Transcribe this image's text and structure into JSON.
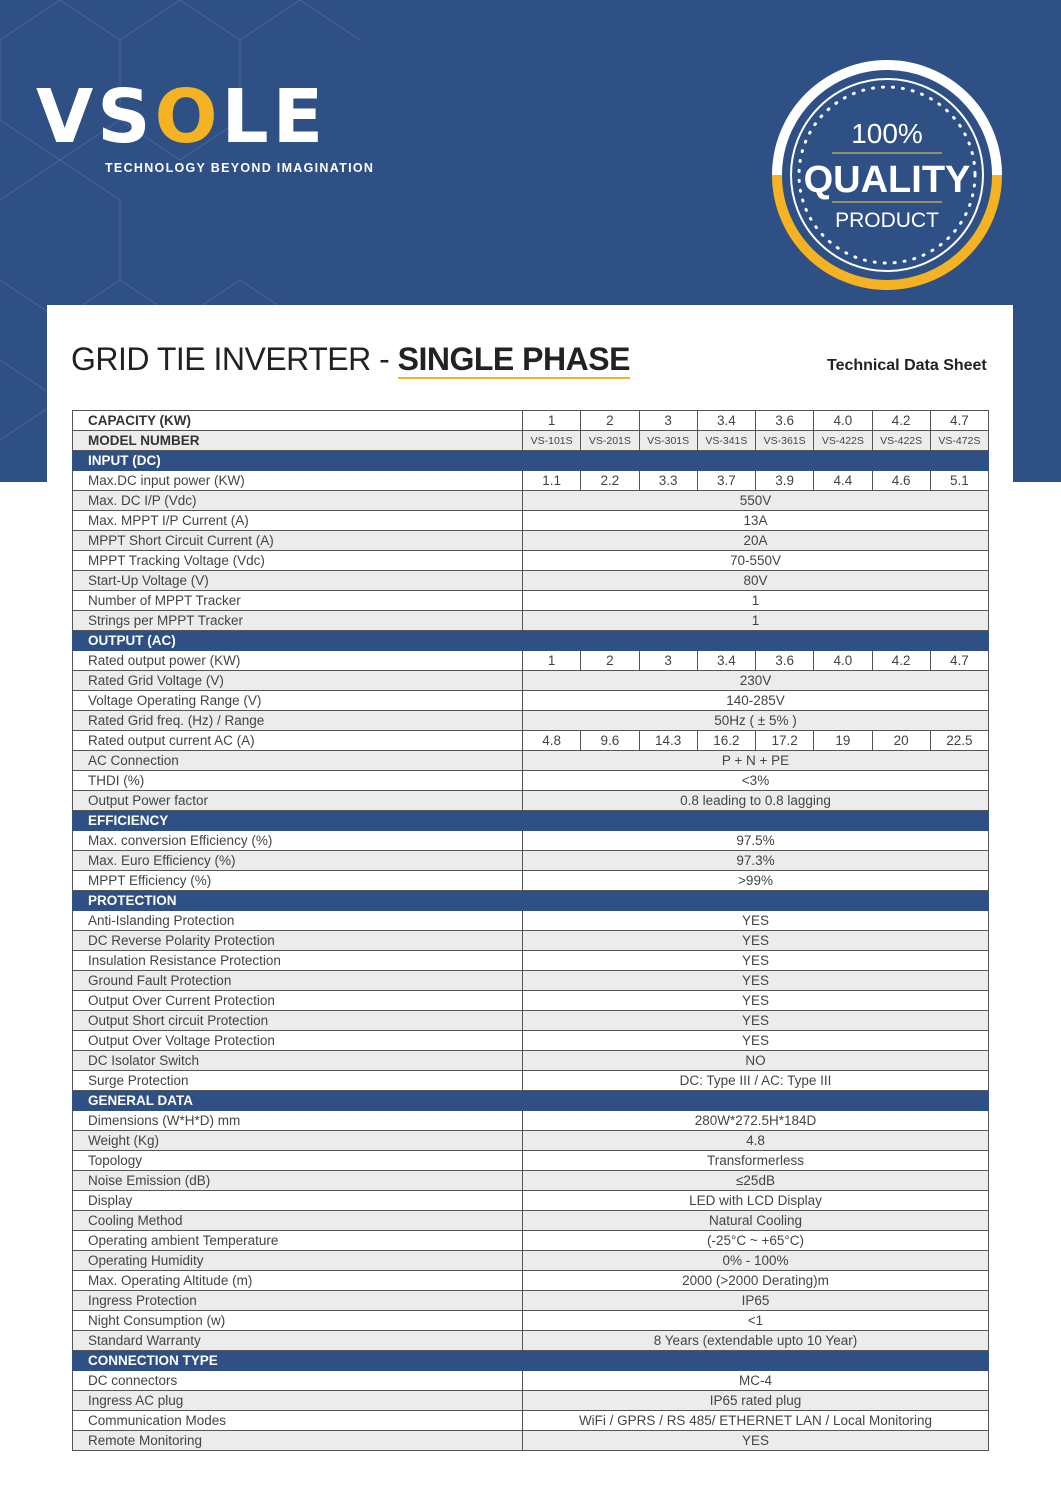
{
  "brand": {
    "logo": "VSOLE",
    "tagline": "TECHNOLOGY BEYOND IMAGINATION",
    "seal": {
      "top": "100%",
      "middle": "QUALITY",
      "bottom": "PRODUCT"
    },
    "colors": {
      "primary": "#2e5085",
      "accent": "#f5b324"
    }
  },
  "title": {
    "main": "GRID TIE INVERTER - ",
    "bold": "SINGLE PHASE",
    "subtitle": "Technical Data Sheet"
  },
  "header_rows": [
    {
      "label": "CAPACITY (KW)",
      "values": [
        "1",
        "2",
        "3",
        "3.4",
        "3.6",
        "4.0",
        "4.2",
        "4.7"
      ]
    },
    {
      "label": "MODEL NUMBER",
      "values": [
        "VS-101S",
        "VS-201S",
        "VS-301S",
        "VS-341S",
        "VS-361S",
        "VS-422S",
        "VS-422S",
        "VS-472S"
      ]
    }
  ],
  "sections": [
    {
      "title": "INPUT (DC)",
      "rows": [
        {
          "label": "Max.DC input power (KW)",
          "values": [
            "1.1",
            "2.2",
            "3.3",
            "3.7",
            "3.9",
            "4.4",
            "4.6",
            "5.1"
          ]
        },
        {
          "label": "Max. DC  I/P (Vdc)",
          "value": "550V"
        },
        {
          "label": "Max. MPPT  I/P Current (A)",
          "value": "13A"
        },
        {
          "label": "MPPT Short Circuit Current (A)",
          "value": "20A"
        },
        {
          "label": "MPPT Tracking Voltage (Vdc)",
          "value": "70-550V"
        },
        {
          "label": "Start-Up Voltage (V)",
          "value": "80V"
        },
        {
          "label": "Number of MPPT Tracker",
          "value": "1"
        },
        {
          "label": "Strings per MPPT Tracker",
          "value": "1"
        }
      ]
    },
    {
      "title": "OUTPUT (AC)",
      "rows": [
        {
          "label": "Rated output power (KW)",
          "values": [
            "1",
            "2",
            "3",
            "3.4",
            "3.6",
            "4.0",
            "4.2",
            "4.7"
          ]
        },
        {
          "label": "Rated Grid Voltage (V)",
          "value": "230V"
        },
        {
          "label": "Voltage Operating Range (V)",
          "value": "140-285V"
        },
        {
          "label": "Rated Grid freq. (Hz) / Range",
          "value": "50Hz ( ± 5% )"
        },
        {
          "label": "Rated output current AC (A)",
          "values": [
            "4.8",
            "9.6",
            "14.3",
            "16.2",
            "17.2",
            "19",
            "20",
            "22.5"
          ]
        },
        {
          "label": "AC Connection",
          "value": "P + N + PE"
        },
        {
          "label": "THDI (%)",
          "value": "<3%"
        },
        {
          "label": "Output Power factor",
          "value": "0.8 leading to 0.8 lagging"
        }
      ]
    },
    {
      "title": "EFFICIENCY",
      "rows": [
        {
          "label": "Max. conversion Efficiency (%)",
          "value": "97.5%"
        },
        {
          "label": "Max. Euro Efficiency (%)",
          "value": "97.3%"
        },
        {
          "label": "MPPT Efficiency (%)",
          "value": ">99%"
        }
      ]
    },
    {
      "title": "PROTECTION",
      "rows": [
        {
          "label": "Anti-Islanding Protection",
          "value": "YES"
        },
        {
          "label": "DC Reverse Polarity Protection",
          "value": "YES"
        },
        {
          "label": "Insulation Resistance Protection",
          "value": "YES"
        },
        {
          "label": "Ground Fault Protection",
          "value": "YES"
        },
        {
          "label": "Output Over Current Protection",
          "value": "YES"
        },
        {
          "label": "Output Short circuit Protection",
          "value": "YES"
        },
        {
          "label": "Output Over Voltage Protection",
          "value": "YES"
        },
        {
          "label": "DC Isolator Switch",
          "value": "NO"
        },
        {
          "label": "Surge Protection",
          "value": "DC: Type III / AC: Type III"
        }
      ]
    },
    {
      "title": "GENERAL DATA",
      "rows": [
        {
          "label": "Dimensions (W*H*D) mm",
          "value": "280W*272.5H*184D"
        },
        {
          "label": "Weight (Kg)",
          "value": "4.8"
        },
        {
          "label": "Topology",
          "value": "Transformerless"
        },
        {
          "label": "Noise Emission (dB)",
          "value": "≤25dB"
        },
        {
          "label": "Display",
          "value": "LED with LCD Display"
        },
        {
          "label": "Cooling Method",
          "value": "Natural Cooling"
        },
        {
          "label": "Operating ambient Temperature",
          "value": "(-25°C ~ +65°C)"
        },
        {
          "label": "Operating Humidity",
          "value": "0% - 100%"
        },
        {
          "label": "Max. Operating Altitude (m)",
          "value": "2000 (>2000 Derating)m"
        },
        {
          "label": "Ingress Protection",
          "value": "IP65"
        },
        {
          "label": "Night Consumption (w)",
          "value": "<1"
        },
        {
          "label": "Standard Warranty",
          "value": "8 Years (extendable upto 10 Year)"
        }
      ]
    },
    {
      "title": "CONNECTION TYPE",
      "rows": [
        {
          "label": "DC connectors",
          "value": "MC-4"
        },
        {
          "label": "Ingress AC plug",
          "value": "IP65 rated plug"
        },
        {
          "label": "Communication Modes",
          "value": "WiFi / GPRS / RS 485/ ETHERNET LAN / Local Monitoring"
        },
        {
          "label": "Remote Monitoring",
          "value": "YES"
        }
      ]
    }
  ]
}
